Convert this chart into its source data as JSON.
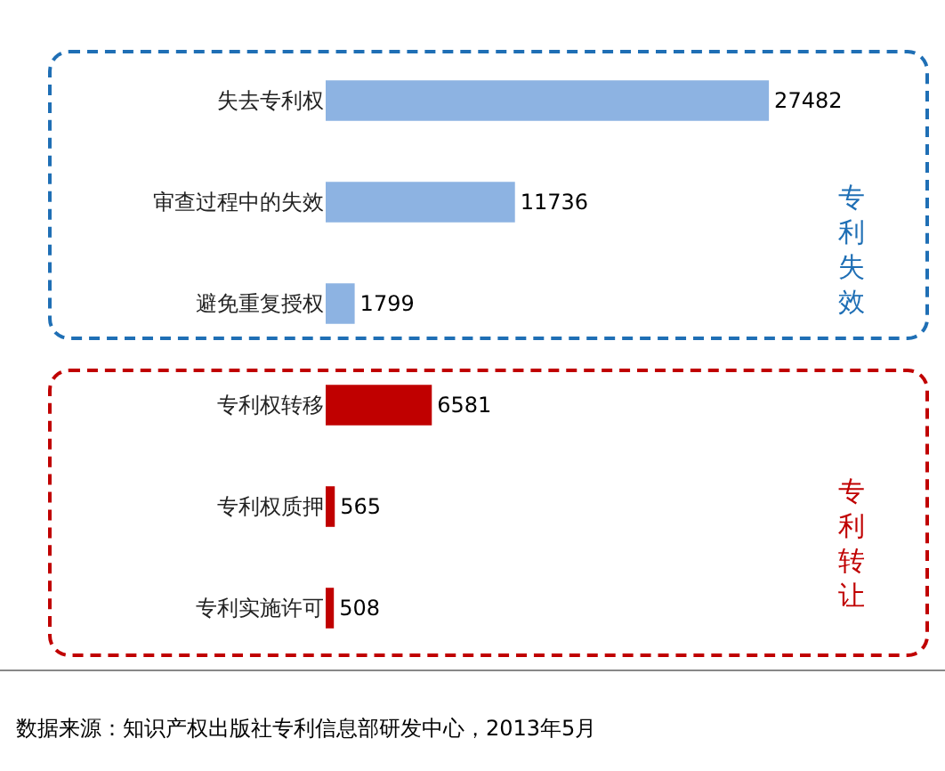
{
  "chart_data": {
    "type": "bar",
    "orientation": "horizontal",
    "categories": [
      "失去专利权",
      "审查过程中的失效",
      "避免重复授权",
      "专利权转移",
      "专利权质押",
      "专利实施许可"
    ],
    "values": [
      27482,
      11736,
      1799,
      6581,
      565,
      508
    ],
    "colors": [
      "#8db3e2",
      "#8db3e2",
      "#8db3e2",
      "#c00000",
      "#c00000",
      "#c00000"
    ],
    "data_labels": true,
    "grid": false,
    "annotations": [
      "专利失效",
      "专利转让",
      "数据来源：知识产权出版社专利信息部研发中心，2013年5月"
    ]
  }
}
